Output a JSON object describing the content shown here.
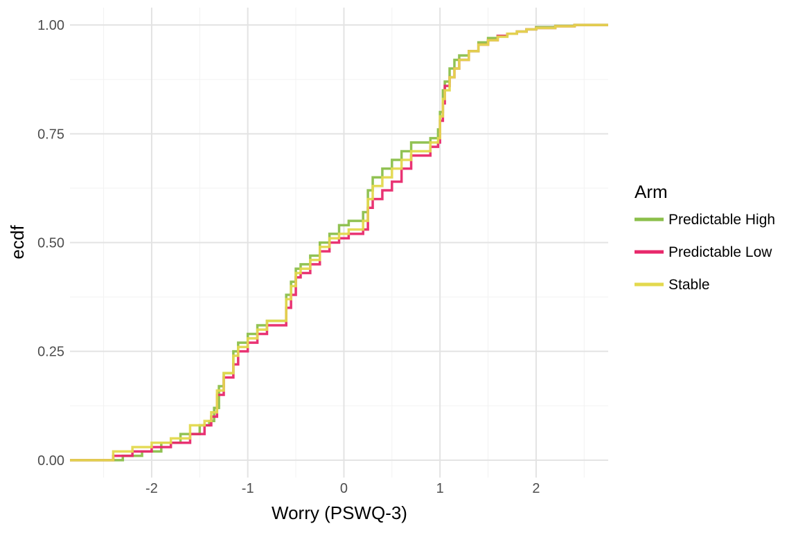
{
  "chart_data": {
    "type": "line",
    "subtype": "ecdf-step",
    "title": "",
    "xlabel": "Worry (PSWQ-3)",
    "ylabel": "ecdf",
    "xlim": [
      -2.85,
      2.75
    ],
    "ylim": [
      -0.04,
      1.04
    ],
    "x_ticks": [
      -2,
      -1,
      0,
      1,
      2
    ],
    "x_tick_labels": [
      "-2",
      "-1",
      "0",
      "1",
      "2"
    ],
    "y_ticks": [
      0,
      0.25,
      0.5,
      0.75,
      1.0
    ],
    "y_tick_labels": [
      "0.00",
      "0.25",
      "0.50",
      "0.75",
      "1.00"
    ],
    "grid": true,
    "legend": {
      "title": "Arm",
      "placement": "right"
    },
    "series": [
      {
        "name": "Predictable High",
        "color": "#8BBF4A",
        "x": [
          -2.85,
          -2.55,
          -2.3,
          -2.1,
          -1.9,
          -1.7,
          -1.5,
          -1.4,
          -1.35,
          -1.3,
          -1.25,
          -1.15,
          -1.1,
          -1.0,
          -0.9,
          -0.8,
          -0.6,
          -0.55,
          -0.5,
          -0.45,
          -0.35,
          -0.25,
          -0.15,
          -0.05,
          0.05,
          0.2,
          0.25,
          0.3,
          0.4,
          0.5,
          0.6,
          0.7,
          0.9,
          0.98,
          1.0,
          1.03,
          1.05,
          1.1,
          1.15,
          1.2,
          1.3,
          1.4,
          1.5,
          1.6,
          1.7,
          1.8,
          1.9,
          2.0,
          2.2,
          2.4,
          2.5,
          2.75
        ],
        "y": [
          0.0,
          0.0,
          0.01,
          0.02,
          0.04,
          0.06,
          0.08,
          0.09,
          0.12,
          0.17,
          0.2,
          0.25,
          0.27,
          0.29,
          0.31,
          0.32,
          0.38,
          0.41,
          0.44,
          0.45,
          0.47,
          0.5,
          0.52,
          0.54,
          0.55,
          0.57,
          0.62,
          0.65,
          0.67,
          0.69,
          0.71,
          0.73,
          0.74,
          0.76,
          0.8,
          0.85,
          0.87,
          0.9,
          0.92,
          0.93,
          0.94,
          0.96,
          0.97,
          0.975,
          0.98,
          0.985,
          0.99,
          0.995,
          0.998,
          1.0,
          1.0,
          1.0
        ]
      },
      {
        "name": "Predictable Low",
        "color": "#E8286B",
        "x": [
          -2.85,
          -2.55,
          -2.4,
          -2.2,
          -2.0,
          -1.8,
          -1.6,
          -1.45,
          -1.38,
          -1.32,
          -1.25,
          -1.15,
          -1.1,
          -1.0,
          -0.9,
          -0.8,
          -0.6,
          -0.55,
          -0.5,
          -0.45,
          -0.35,
          -0.25,
          -0.15,
          -0.05,
          0.05,
          0.2,
          0.25,
          0.3,
          0.4,
          0.5,
          0.6,
          0.7,
          0.9,
          0.98,
          1.0,
          1.03,
          1.05,
          1.1,
          1.15,
          1.2,
          1.3,
          1.4,
          1.5,
          1.6,
          1.7,
          1.8,
          1.9,
          2.0,
          2.2,
          2.4,
          2.5,
          2.75
        ],
        "y": [
          0.0,
          0.0,
          0.01,
          0.02,
          0.03,
          0.04,
          0.06,
          0.08,
          0.1,
          0.15,
          0.19,
          0.22,
          0.25,
          0.27,
          0.29,
          0.31,
          0.35,
          0.38,
          0.42,
          0.43,
          0.45,
          0.48,
          0.5,
          0.51,
          0.52,
          0.53,
          0.58,
          0.6,
          0.62,
          0.64,
          0.67,
          0.7,
          0.72,
          0.73,
          0.78,
          0.82,
          0.86,
          0.88,
          0.9,
          0.92,
          0.94,
          0.955,
          0.965,
          0.975,
          0.98,
          0.985,
          0.99,
          0.993,
          0.997,
          1.0,
          1.0,
          1.0
        ]
      },
      {
        "name": "Stable",
        "color": "#E3D94E",
        "x": [
          -2.85,
          -2.6,
          -2.4,
          -2.2,
          -2.0,
          -1.8,
          -1.6,
          -1.45,
          -1.38,
          -1.32,
          -1.25,
          -1.15,
          -1.1,
          -1.0,
          -0.9,
          -0.8,
          -0.6,
          -0.55,
          -0.5,
          -0.45,
          -0.35,
          -0.25,
          -0.15,
          -0.05,
          0.05,
          0.2,
          0.25,
          0.3,
          0.4,
          0.5,
          0.6,
          0.7,
          0.9,
          0.98,
          1.0,
          1.03,
          1.05,
          1.1,
          1.15,
          1.2,
          1.3,
          1.4,
          1.5,
          1.6,
          1.7,
          1.8,
          1.9,
          2.0,
          2.2,
          2.4,
          2.5,
          2.75
        ],
        "y": [
          0.0,
          0.0,
          0.02,
          0.03,
          0.04,
          0.05,
          0.08,
          0.09,
          0.11,
          0.16,
          0.2,
          0.24,
          0.26,
          0.28,
          0.3,
          0.32,
          0.37,
          0.4,
          0.43,
          0.44,
          0.46,
          0.49,
          0.51,
          0.52,
          0.53,
          0.55,
          0.6,
          0.63,
          0.65,
          0.67,
          0.69,
          0.71,
          0.73,
          0.74,
          0.79,
          0.83,
          0.85,
          0.88,
          0.9,
          0.92,
          0.94,
          0.955,
          0.965,
          0.973,
          0.98,
          0.985,
          0.99,
          0.993,
          0.997,
          1.0,
          1.0,
          1.0
        ]
      }
    ]
  }
}
